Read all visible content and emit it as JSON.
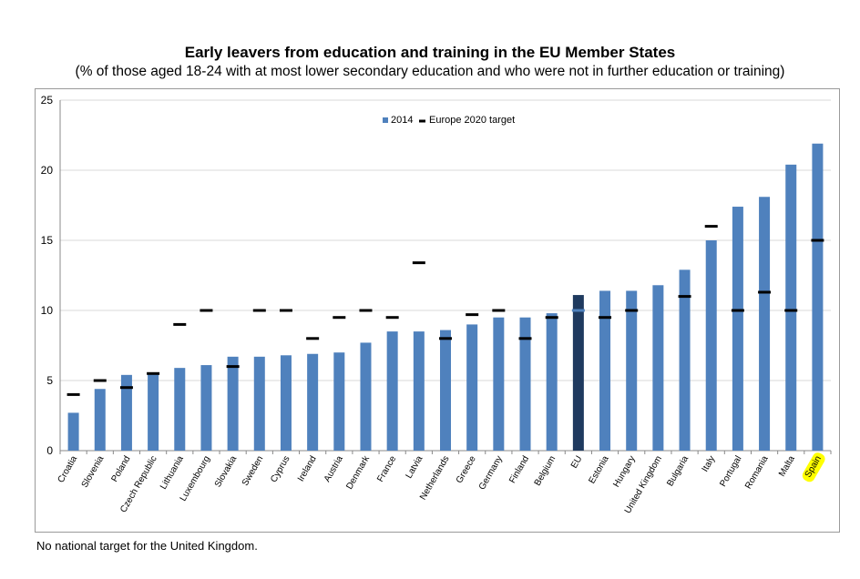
{
  "colors": {
    "bar": "#4f81bd",
    "highlight_bar": "#1f3a5f",
    "target": "#000000",
    "highlight_label": "#ffff00",
    "gridline": "#d9d9d9"
  },
  "chart_data": {
    "type": "bar",
    "title": "Early leavers from education and training in the EU Member States",
    "subtitle": "(% of those aged 18-24 with at most lower secondary education and who were not in further education or training)",
    "ylim": [
      0,
      25
    ],
    "yticks": [
      0,
      5,
      10,
      15,
      20,
      25
    ],
    "grid": true,
    "legend_position": "top-center",
    "categories": [
      "Croatia",
      "Slovenia",
      "Poland",
      "Czech Republic",
      "Lithuania",
      "Luxembourg",
      "Slovakia",
      "Sweden",
      "Cyprus",
      "Ireland",
      "Austria",
      "Denmark",
      "France",
      "Latvia",
      "Netherlands",
      "Greece",
      "Germany",
      "Finland",
      "Belgium",
      "EU",
      "Estonia",
      "Hungary",
      "United Kingdom",
      "Bulgaria",
      "Italy",
      "Portugal",
      "Romania",
      "Malta",
      "Spain"
    ],
    "series": [
      {
        "name": "2014",
        "type": "bar",
        "values": [
          2.7,
          4.4,
          5.4,
          5.5,
          5.9,
          6.1,
          6.7,
          6.7,
          6.8,
          6.9,
          7.0,
          7.7,
          8.5,
          8.5,
          8.6,
          9.0,
          9.5,
          9.5,
          9.8,
          11.1,
          11.4,
          11.4,
          11.8,
          12.9,
          15.0,
          17.4,
          18.1,
          20.4,
          21.9
        ]
      },
      {
        "name": "Europe 2020 target",
        "type": "marker",
        "values": [
          4,
          5,
          4.5,
          5.5,
          9,
          10,
          6,
          10,
          10,
          8,
          9.5,
          10,
          9.5,
          13.4,
          8,
          9.7,
          10,
          8,
          9.5,
          10,
          9.5,
          10,
          null,
          11,
          16,
          10,
          11.3,
          10,
          15
        ]
      }
    ],
    "highlighted_bar": "EU",
    "highlighted_label": "Spain"
  },
  "footnote": "No national target for the United Kingdom."
}
